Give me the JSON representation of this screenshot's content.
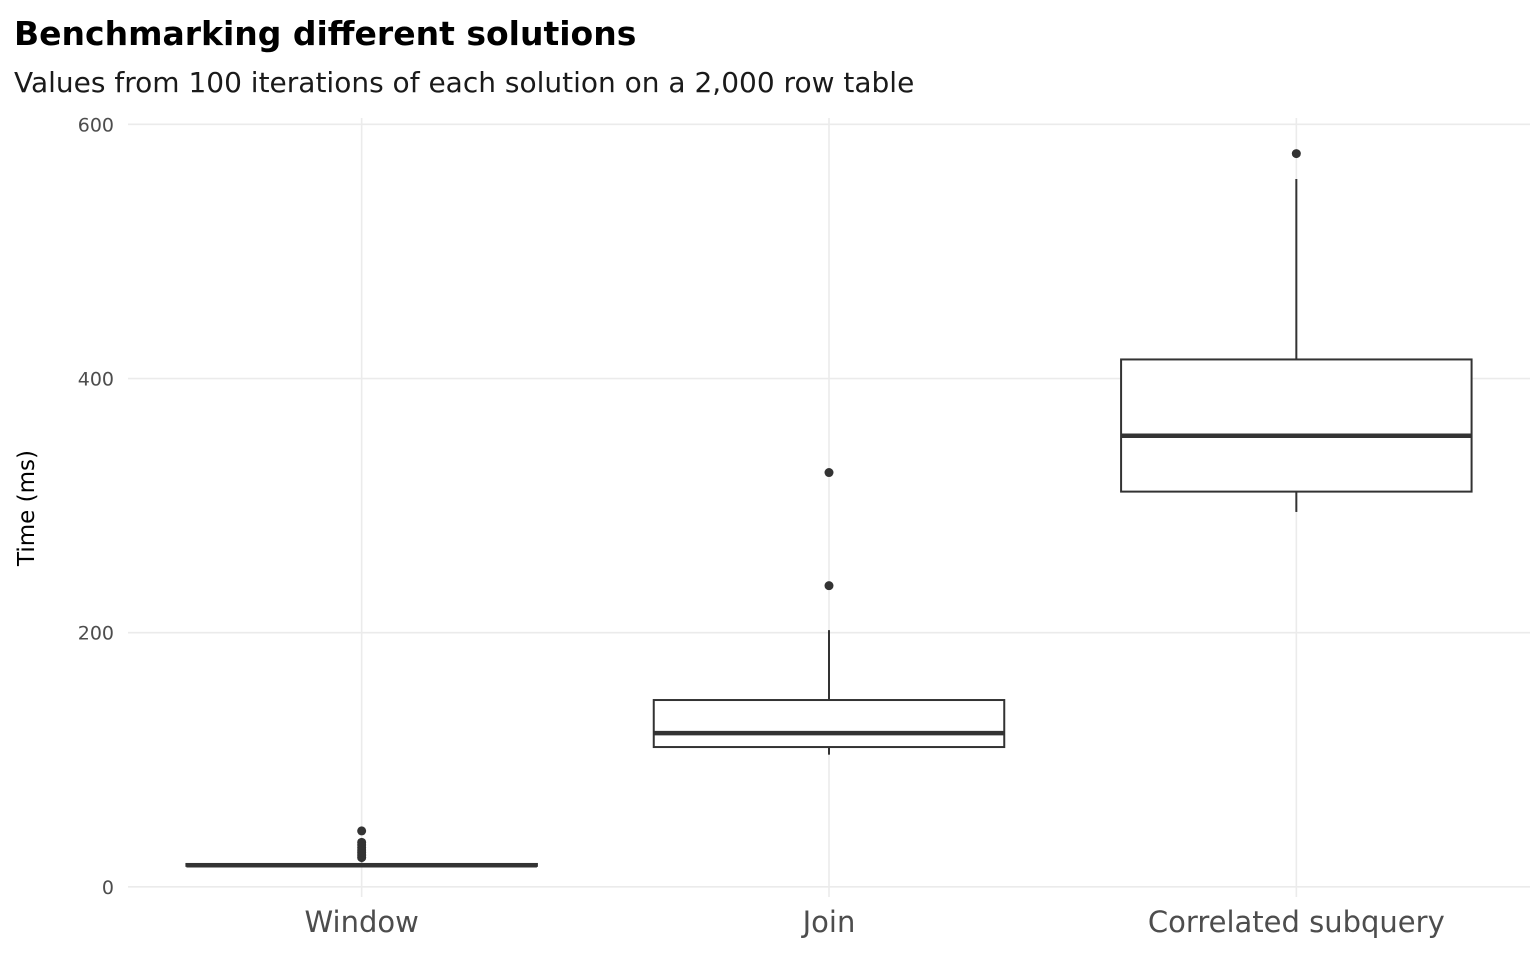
{
  "chart_data": {
    "type": "boxplot",
    "title": "Benchmarking different solutions",
    "subtitle": "Values from 100 iterations of each solution on a 2,000 row table",
    "xlabel": "",
    "ylabel": "Time (ms)",
    "ylim": [
      -8,
      605
    ],
    "yticks": [
      0,
      200,
      400,
      600
    ],
    "grid": true,
    "categories": [
      "Window",
      "Join",
      "Correlated subquery"
    ],
    "boxes": [
      {
        "category": "Window",
        "whisker_low": 16,
        "q1": 16.5,
        "median": 17,
        "q3": 18,
        "whisker_high": 19,
        "outliers": [
          23,
          25,
          27,
          29,
          31,
          33,
          35,
          44
        ]
      },
      {
        "category": "Join",
        "whisker_low": 104,
        "q1": 110,
        "median": 121,
        "q3": 147,
        "whisker_high": 202,
        "outliers": [
          237,
          326
        ]
      },
      {
        "category": "Correlated subquery",
        "whisker_low": 295,
        "q1": 311,
        "median": 355,
        "q3": 415,
        "whisker_high": 557,
        "outliers": [
          577
        ]
      }
    ],
    "colors": {
      "box_line": "#333333",
      "grid": "#ebebeb",
      "tick_text": "#4d4d4d",
      "axis_title": "#1a1a1a"
    }
  }
}
